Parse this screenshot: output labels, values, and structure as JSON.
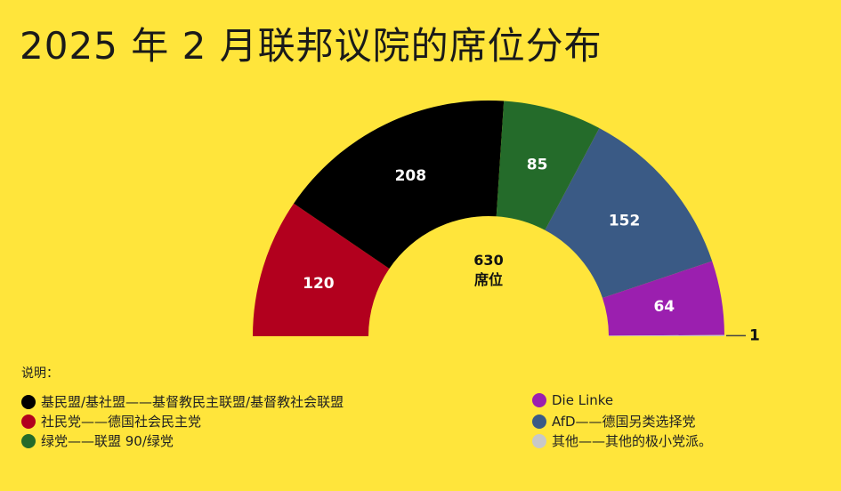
{
  "title": "2025 年 2 月联邦议院的席位分布",
  "chart_data": {
    "type": "pie",
    "shape": "half-donut parliament",
    "center_value": "630",
    "center_label": "席位",
    "total": 630,
    "series": [
      {
        "name": "社民党",
        "value": 120,
        "color": "#B2001E",
        "label": "120"
      },
      {
        "name": "基民盟/基社盟",
        "value": 208,
        "color": "#000000",
        "label": "208"
      },
      {
        "name": "绿党",
        "value": 85,
        "color": "#246B2A",
        "label": "85"
      },
      {
        "name": "AfD",
        "value": 152,
        "color": "#3A5A85",
        "label": "152"
      },
      {
        "name": "Die Linke",
        "value": 64,
        "color": "#9B1FAF",
        "label": "64"
      },
      {
        "name": "其他",
        "value": 1,
        "color": "#C8C8C8",
        "label": "1"
      }
    ]
  },
  "legend": {
    "heading": "说明：",
    "items": [
      {
        "text": "基民盟/基社盟——基督教民主联盟/基督教社会联盟",
        "color": "#000000"
      },
      {
        "text": "社民党——德国社会民主党",
        "color": "#B2001E"
      },
      {
        "text": "绿党——联盟 90/绿党",
        "color": "#246B2A"
      },
      {
        "text": "Die Linke",
        "color": "#9B1FAF"
      },
      {
        "text": "AfD——德国另类选择党",
        "color": "#3A5A85"
      },
      {
        "text": "其他——其他的极小党派。",
        "color": "#C8C8C8"
      }
    ]
  }
}
